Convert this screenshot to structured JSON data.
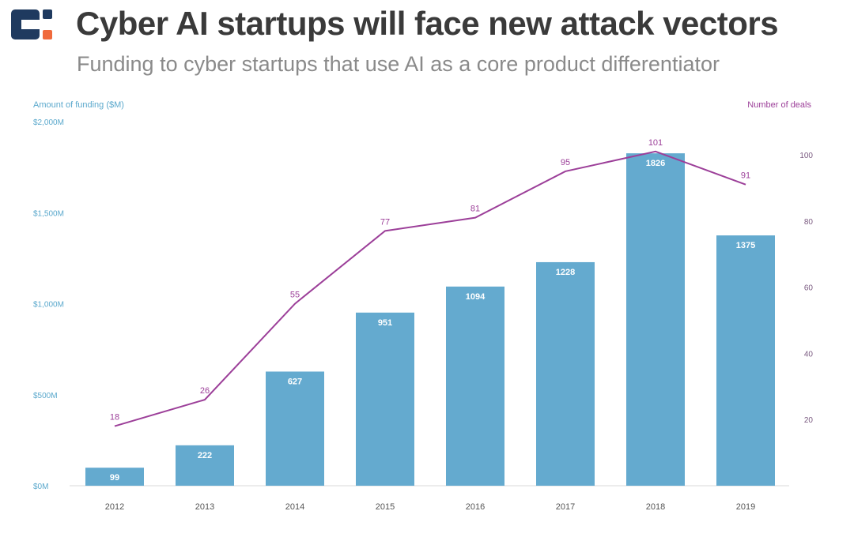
{
  "header": {
    "title": "Cyber AI startups will face new attack vectors",
    "subtitle": "Funding to cyber startups that use AI as a core product differentiator"
  },
  "colors": {
    "bar": "#64aacf",
    "line": "#9c3f99",
    "left_axis": "#5aa8cc",
    "right_axis": "#9c3f99",
    "title": "#3a3a3a",
    "subtitle": "#8a8a8a",
    "logo_dark": "#1f3a5f",
    "logo_accent": "#f06a3c"
  },
  "chart_data": {
    "type": "bar",
    "categories": [
      "2012",
      "2013",
      "2014",
      "2015",
      "2016",
      "2017",
      "2018",
      "2019"
    ],
    "ylabel": "Amount of funding ($M)",
    "y2label": "Number of deals",
    "ylim": [
      0,
      2000
    ],
    "y2lim": [
      0,
      100
    ],
    "yticks": [
      "$0M",
      "$500M",
      "$1,000M",
      "$1,500M",
      "$2,000M"
    ],
    "yticks_values": [
      0,
      500,
      1000,
      1500,
      2000
    ],
    "y2ticks": [
      20,
      40,
      60,
      80,
      100
    ],
    "grid": false,
    "series": [
      {
        "type": "bar",
        "axis": "left",
        "values": [
          99,
          222,
          627,
          951,
          1094,
          1228,
          1826,
          1375
        ]
      },
      {
        "type": "line",
        "axis": "right",
        "values": [
          18,
          26,
          55,
          77,
          81,
          95,
          101,
          91
        ]
      }
    ]
  }
}
